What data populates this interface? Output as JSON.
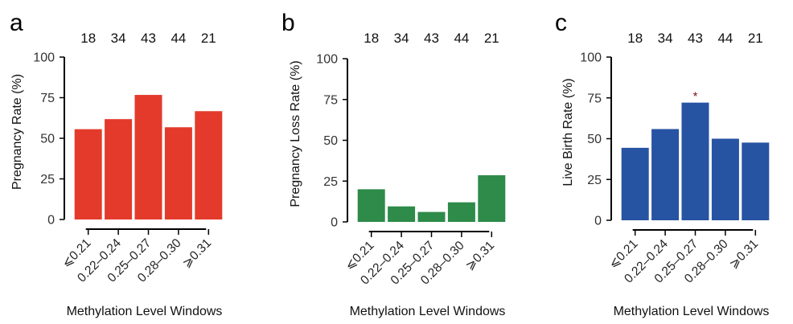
{
  "chart_data": [
    {
      "type": "bar",
      "panel": "a",
      "ylabel": "Pregnancy Rate (%)",
      "xlabel": "Methylation Level Windows",
      "categories": [
        "⩽0.21",
        "0.22–0.24",
        "0.25–0.27",
        "0.28–0.30",
        "⩾0.31"
      ],
      "counts": [
        "18",
        "34",
        "43",
        "44",
        "21"
      ],
      "values": [
        55.6,
        61.8,
        76.7,
        56.8,
        66.7
      ],
      "yticks": [
        "0",
        "25",
        "50",
        "75",
        "100"
      ],
      "ylim": [
        0,
        100
      ],
      "color": "#e33a2b",
      "significance": [
        "",
        "",
        "",
        "",
        ""
      ],
      "grid": false
    },
    {
      "type": "bar",
      "panel": "b",
      "ylabel": "Pregnancy Loss Rate (%)",
      "xlabel": "Methylation Level Windows",
      "categories": [
        "⩽0.21",
        "0.22–0.24",
        "0.25–0.27",
        "0.28–0.30",
        "⩾0.31"
      ],
      "counts": [
        "18",
        "34",
        "43",
        "44",
        "21"
      ],
      "values": [
        20.0,
        9.5,
        6.1,
        12.0,
        28.6
      ],
      "yticks": [
        "0",
        "25",
        "50",
        "75",
        "100"
      ],
      "ylim": [
        0,
        100
      ],
      "color": "#2e8b4a",
      "significance": [
        "",
        "",
        "",
        "",
        ""
      ],
      "grid": false
    },
    {
      "type": "bar",
      "panel": "c",
      "ylabel": "Live Birth Rate (%)",
      "xlabel": "Methylation Level Windows",
      "categories": [
        "⩽0.21",
        "0.22–0.24",
        "0.25–0.27",
        "0.28–0.30",
        "⩾0.31"
      ],
      "counts": [
        "18",
        "34",
        "43",
        "44",
        "21"
      ],
      "values": [
        44.4,
        55.9,
        72.1,
        50.0,
        47.6
      ],
      "yticks": [
        "0",
        "25",
        "50",
        "75",
        "100"
      ],
      "ylim": [
        0,
        100
      ],
      "color": "#2753a3",
      "significance": [
        "",
        "",
        "*",
        "",
        ""
      ],
      "grid": false
    }
  ]
}
